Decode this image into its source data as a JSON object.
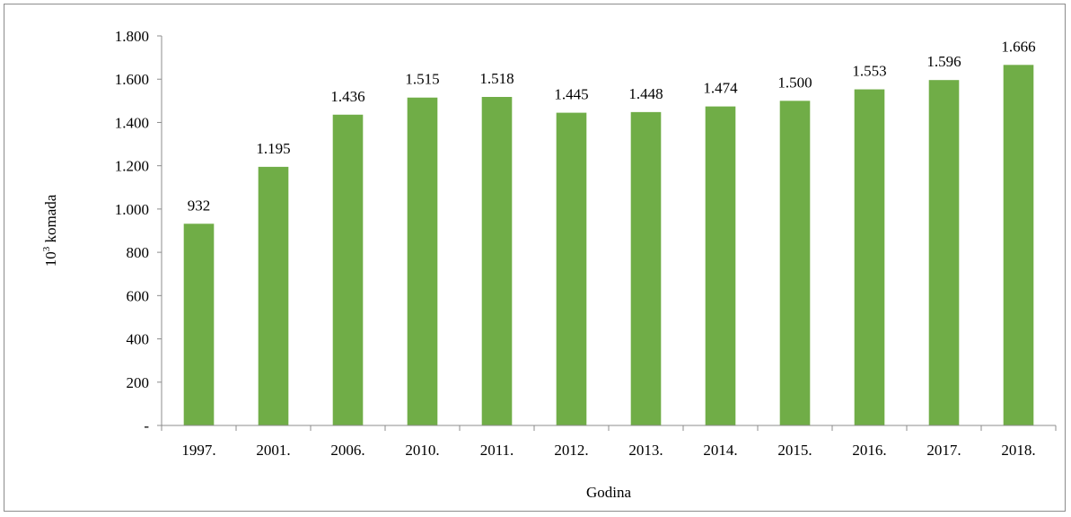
{
  "chart_data": {
    "type": "bar",
    "categories": [
      "1997.",
      "2001.",
      "2006.",
      "2010.",
      "2011.",
      "2012.",
      "2013.",
      "2014.",
      "2015.",
      "2016.",
      "2017.",
      "2018."
    ],
    "values": [
      932,
      1195,
      1436,
      1515,
      1518,
      1445,
      1448,
      1474,
      1500,
      1553,
      1596,
      1666
    ],
    "data_labels": [
      "932",
      "1.195",
      "1.436",
      "1.515",
      "1.518",
      "1.445",
      "1.448",
      "1.474",
      "1.500",
      "1.553",
      "1.596",
      "1.666"
    ],
    "title": "",
    "xlabel": "Godina",
    "ylabel_base": "10",
    "ylabel_sup": "3",
    "ylabel_rest": " komada",
    "ylim": [
      0,
      1800
    ],
    "yticks": [
      0,
      200,
      400,
      600,
      800,
      1000,
      1200,
      1400,
      1600,
      1800
    ],
    "ytick_labels": [
      "-",
      "200",
      "400",
      "600",
      "800",
      "1.000",
      "1.200",
      "1.400",
      "1.600",
      "1.800"
    ],
    "bar_color": "#70ad47",
    "grid": false,
    "legend": "none"
  }
}
